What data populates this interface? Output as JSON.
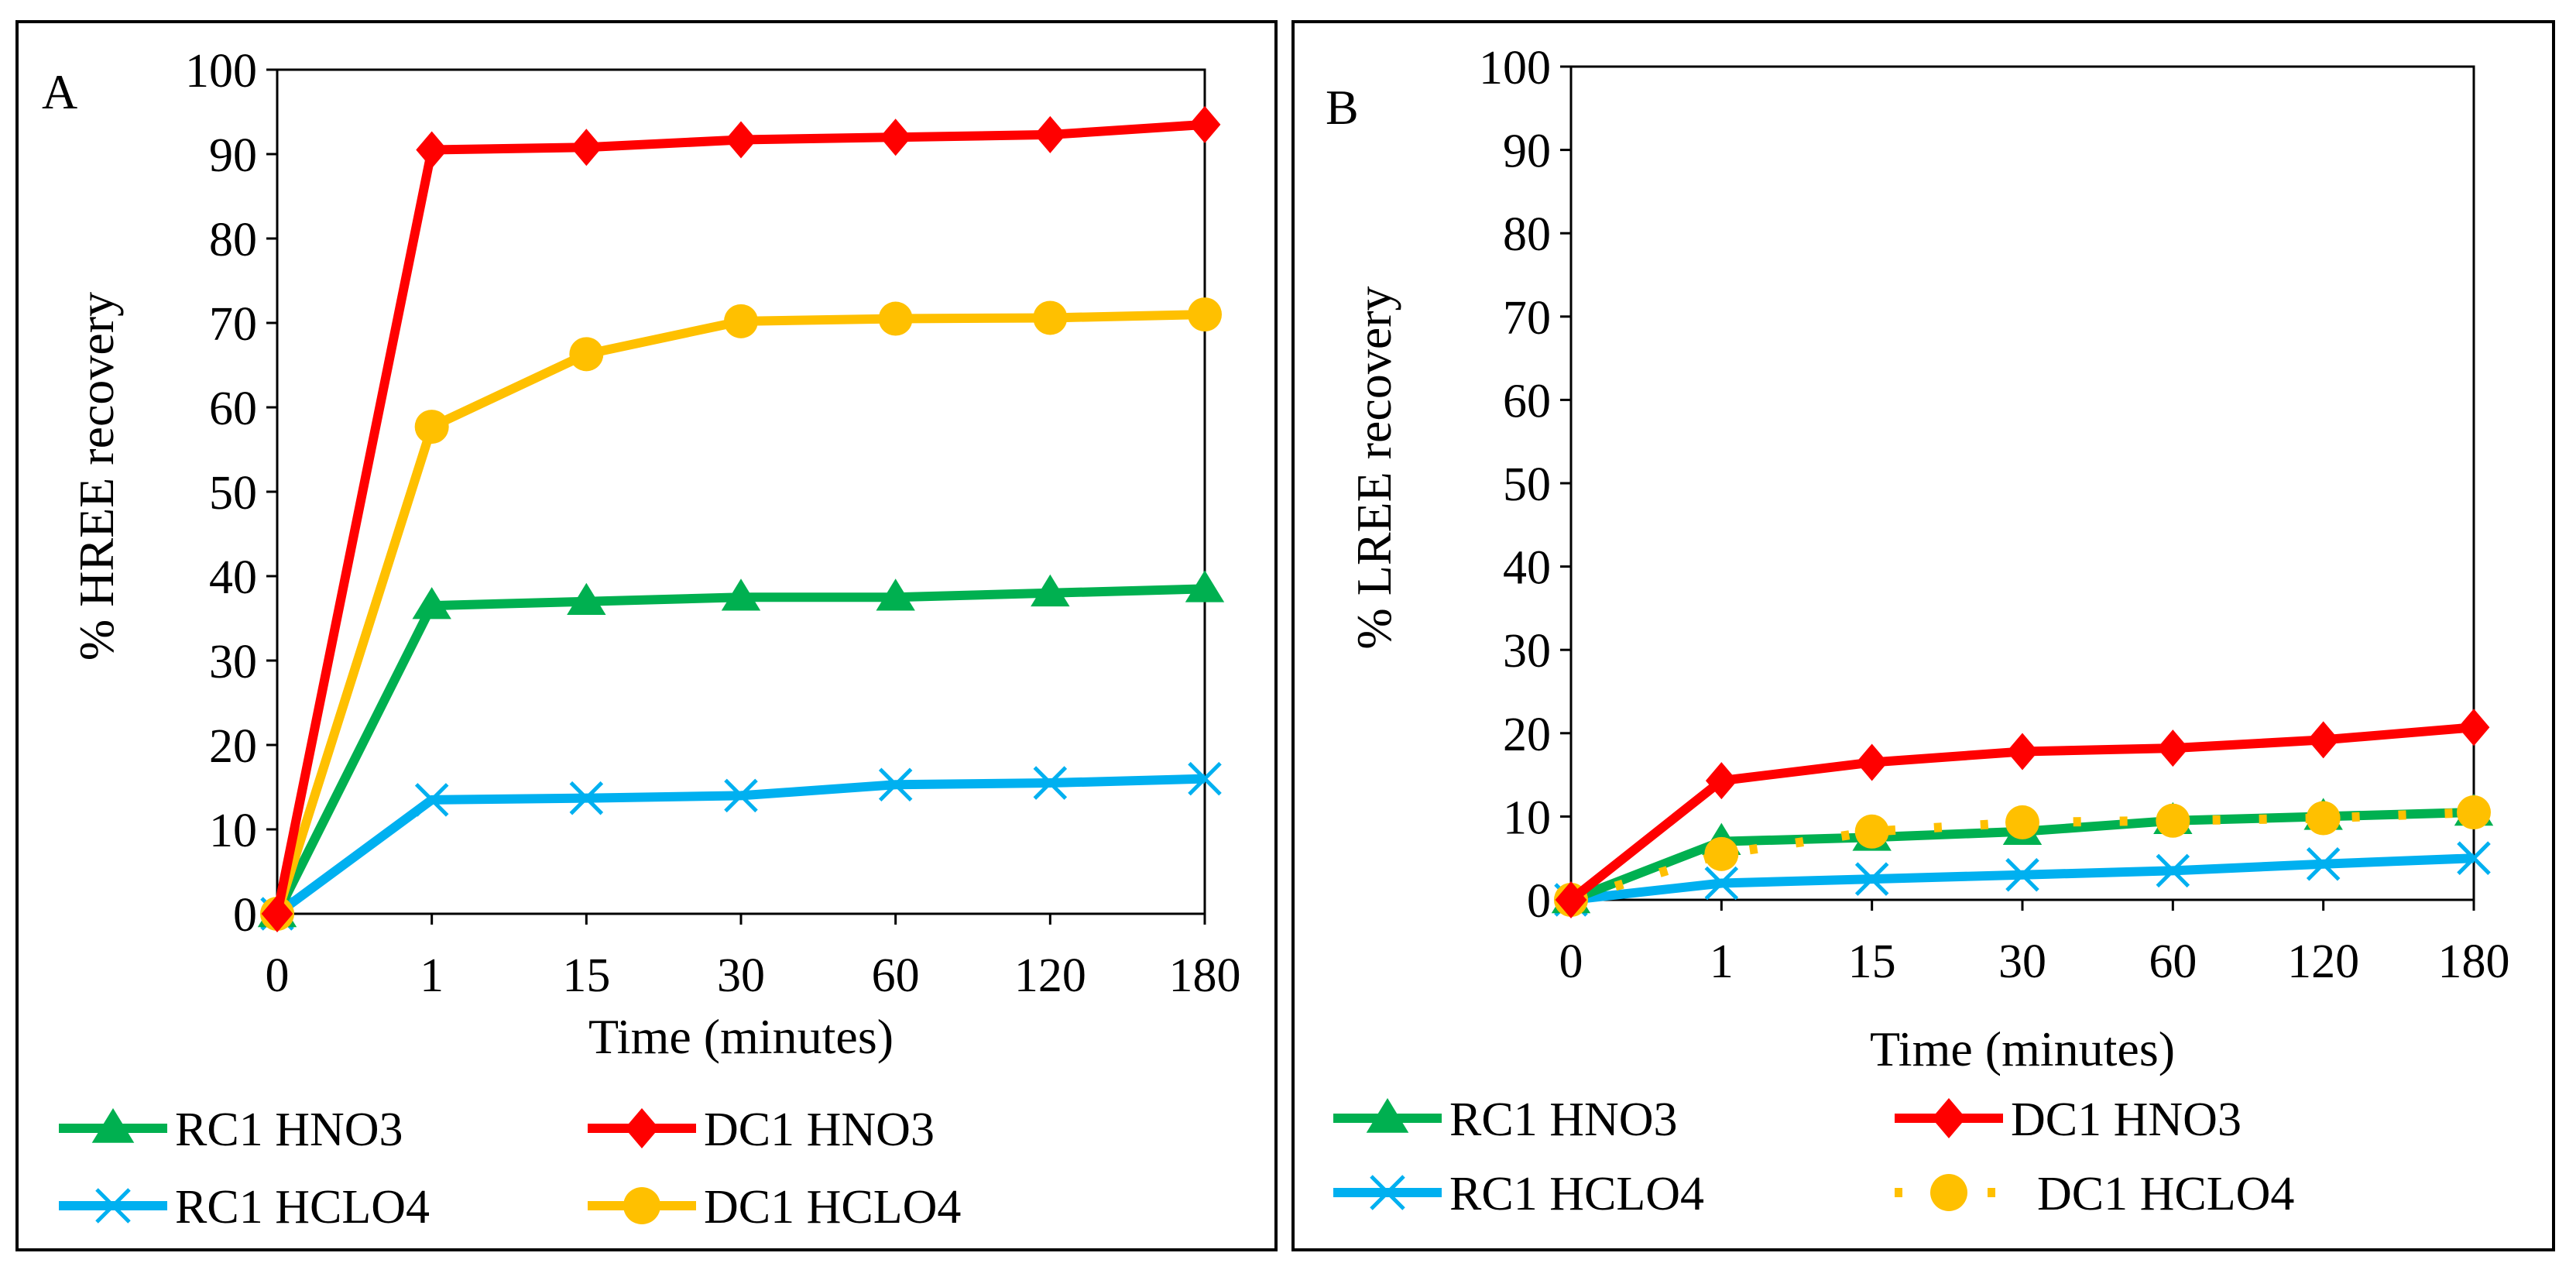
{
  "chart_data": [
    {
      "type": "line",
      "panel_label": "A",
      "xlabel": "Time (minutes)",
      "ylabel": "% HREE recovery",
      "categories": [
        "0",
        "1",
        "15",
        "30",
        "60",
        "120",
        "180"
      ],
      "ylim": [
        0,
        100
      ],
      "yticks": [
        "0",
        "10",
        "20",
        "30",
        "40",
        "50",
        "60",
        "70",
        "80",
        "90",
        "100"
      ],
      "grid": false,
      "legend_position": "bottom",
      "series": [
        {
          "name": "RC1 HNO3",
          "color": "#00b050",
          "marker": "triangle",
          "values": [
            0,
            36.5,
            37,
            37.5,
            37.5,
            38,
            38.5
          ]
        },
        {
          "name": "DC1 HNO3",
          "color": "#ff0000",
          "marker": "diamond",
          "values": [
            0,
            90.5,
            90.8,
            91.7,
            92,
            92.3,
            93.5
          ]
        },
        {
          "name": "RC1 HCLO4",
          "color": "#00b0f0",
          "marker": "x",
          "values": [
            0,
            13.5,
            13.7,
            14,
            15.3,
            15.5,
            16
          ]
        },
        {
          "name": "DC1 HCLO4",
          "color": "#ffc000",
          "marker": "circle",
          "values": [
            0,
            57.7,
            66.3,
            70.2,
            70.5,
            70.6,
            71
          ]
        }
      ]
    },
    {
      "type": "line",
      "panel_label": "B",
      "xlabel": "Time (minutes)",
      "ylabel": "% LREE recovery",
      "categories": [
        "0",
        "1",
        "15",
        "30",
        "60",
        "120",
        "180"
      ],
      "ylim": [
        0,
        100
      ],
      "yticks": [
        "0",
        "10",
        "20",
        "30",
        "40",
        "50",
        "60",
        "70",
        "80",
        "90",
        "100"
      ],
      "grid": false,
      "legend_position": "bottom",
      "series": [
        {
          "name": "RC1 HNO3",
          "color": "#00b050",
          "marker": "triangle",
          "values": [
            0,
            7,
            7.5,
            8.2,
            9.5,
            10,
            10.5
          ]
        },
        {
          "name": "DC1 HNO3",
          "color": "#ff0000",
          "marker": "diamond",
          "values": [
            0,
            14.3,
            16.5,
            17.8,
            18.2,
            19.2,
            20.7
          ]
        },
        {
          "name": "RC1 HCLO4",
          "color": "#00b0f0",
          "marker": "x",
          "values": [
            0,
            2,
            2.5,
            3,
            3.5,
            4.3,
            5
          ]
        },
        {
          "name": "DC1 HCLO4",
          "color": "#ffc000",
          "marker": "circle",
          "dashed": true,
          "values": [
            0,
            5.5,
            8.2,
            9.3,
            9.5,
            9.8,
            10.5
          ]
        }
      ]
    }
  ]
}
